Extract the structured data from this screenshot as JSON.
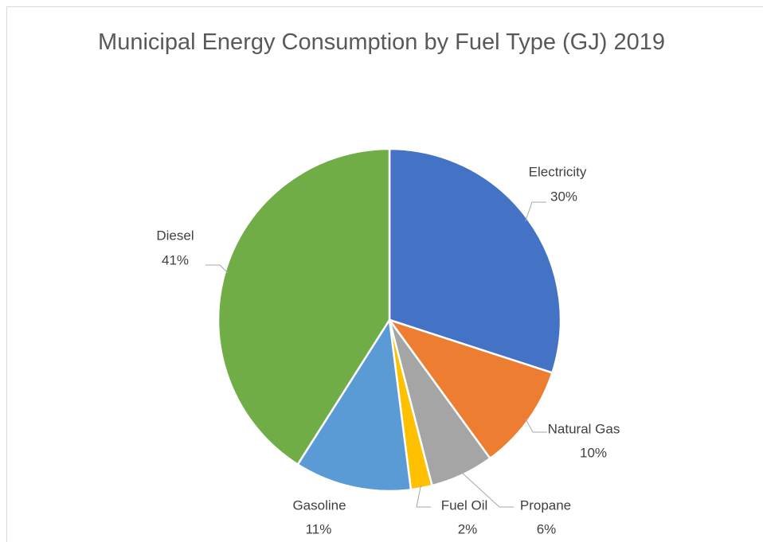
{
  "chart_data": {
    "type": "pie",
    "title": "Municipal Energy Consumption by Fuel Type (GJ) 2019",
    "categories": [
      "Electricity",
      "Natural Gas",
      "Propane",
      "Fuel Oil",
      "Gasoline",
      "Diesel"
    ],
    "values": [
      30,
      10,
      6,
      2,
      11,
      41
    ],
    "value_labels": [
      "30%",
      "10%",
      "6%",
      "2%",
      "11%",
      "41%"
    ],
    "colors": [
      "#4472c4",
      "#ed7d31",
      "#a5a5a5",
      "#ffc000",
      "#5b9bd5",
      "#70ad47"
    ]
  }
}
